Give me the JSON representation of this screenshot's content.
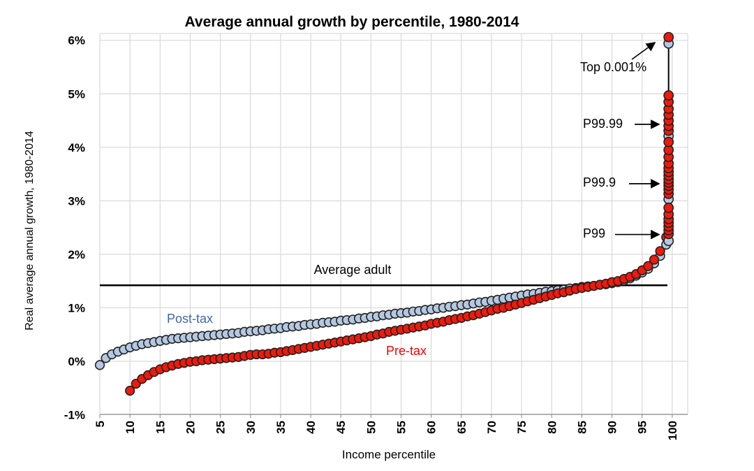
{
  "title": "Average annual growth by percentile, 1980-2014",
  "colors": {
    "posttax_fill": "#B4C8E1",
    "pretax_fill": "#EE1A0B",
    "marker_edge": "#202020",
    "posttax_label": "#3D68A8",
    "pretax_label": "#FA0000",
    "gridline": "#D9D9D9",
    "axis": "#999999",
    "reference_line": "#000000",
    "text": "#000000"
  },
  "chart_data": {
    "type": "scatter",
    "title": "Average annual growth by percentile, 1980-2014",
    "xlabel": "Income percentile",
    "ylabel": "Real average annual growth, 1980-2014",
    "xlim": [
      5,
      100
    ],
    "ylim": [
      -1,
      6
    ],
    "grid": true,
    "x_ticks": [
      5,
      10,
      15,
      20,
      25,
      30,
      35,
      40,
      45,
      50,
      55,
      60,
      65,
      70,
      75,
      80,
      85,
      90,
      95,
      100
    ],
    "y_ticks": [
      {
        "label": "6%",
        "value": 6
      },
      {
        "label": "5%",
        "value": 5
      },
      {
        "label": "4%",
        "value": 4
      },
      {
        "label": "3%",
        "value": 3
      },
      {
        "label": "2%",
        "value": 2
      },
      {
        "label": "1%",
        "value": 1
      },
      {
        "label": "0%",
        "value": 0
      },
      {
        "label": "-1%",
        "value": -1
      }
    ],
    "reference_line": {
      "label": "Average adult",
      "y": 1.42
    },
    "annotations": [
      {
        "label": "Top 0.001%",
        "points_to_y": 6.06
      },
      {
        "label": "P99.99",
        "points_to_y": 4.43
      },
      {
        "label": "P99.9",
        "points_to_y": 3.32
      },
      {
        "label": "P99",
        "points_to_y": 2.37
      }
    ],
    "series": [
      {
        "name": "Post-tax",
        "points": [
          [
            5,
            -0.07
          ],
          [
            6,
            0.06
          ],
          [
            7,
            0.13
          ],
          [
            8,
            0.18
          ],
          [
            9,
            0.22
          ],
          [
            10,
            0.26
          ],
          [
            11,
            0.29
          ],
          [
            12,
            0.32
          ],
          [
            13,
            0.34
          ],
          [
            14,
            0.36
          ],
          [
            15,
            0.38
          ],
          [
            16,
            0.4
          ],
          [
            17,
            0.42
          ],
          [
            18,
            0.43
          ],
          [
            19,
            0.44
          ],
          [
            20,
            0.45
          ],
          [
            21,
            0.46
          ],
          [
            22,
            0.47
          ],
          [
            23,
            0.48
          ],
          [
            24,
            0.49
          ],
          [
            25,
            0.5
          ],
          [
            26,
            0.51
          ],
          [
            27,
            0.52
          ],
          [
            28,
            0.53
          ],
          [
            29,
            0.55
          ],
          [
            30,
            0.56
          ],
          [
            31,
            0.57
          ],
          [
            32,
            0.58
          ],
          [
            33,
            0.6
          ],
          [
            34,
            0.61
          ],
          [
            35,
            0.62
          ],
          [
            36,
            0.64
          ],
          [
            37,
            0.65
          ],
          [
            38,
            0.66
          ],
          [
            39,
            0.68
          ],
          [
            40,
            0.69
          ],
          [
            41,
            0.7
          ],
          [
            42,
            0.72
          ],
          [
            43,
            0.73
          ],
          [
            44,
            0.74
          ],
          [
            45,
            0.76
          ],
          [
            46,
            0.77
          ],
          [
            47,
            0.78
          ],
          [
            48,
            0.8
          ],
          [
            49,
            0.81
          ],
          [
            50,
            0.83
          ],
          [
            51,
            0.84
          ],
          [
            52,
            0.86
          ],
          [
            53,
            0.87
          ],
          [
            54,
            0.89
          ],
          [
            55,
            0.9
          ],
          [
            56,
            0.91
          ],
          [
            57,
            0.93
          ],
          [
            58,
            0.94
          ],
          [
            59,
            0.96
          ],
          [
            60,
            0.97
          ],
          [
            61,
            0.99
          ],
          [
            62,
            1.0
          ],
          [
            63,
            1.02
          ],
          [
            64,
            1.03
          ],
          [
            65,
            1.05
          ],
          [
            66,
            1.06
          ],
          [
            67,
            1.08
          ],
          [
            68,
            1.1
          ],
          [
            69,
            1.11
          ],
          [
            70,
            1.13
          ],
          [
            71,
            1.15
          ],
          [
            72,
            1.17
          ],
          [
            73,
            1.19
          ],
          [
            74,
            1.21
          ],
          [
            75,
            1.23
          ],
          [
            76,
            1.25
          ],
          [
            77,
            1.26
          ],
          [
            78,
            1.28
          ],
          [
            79,
            1.3
          ],
          [
            80,
            1.31
          ],
          [
            81,
            1.33
          ],
          [
            82,
            1.34
          ],
          [
            83,
            1.36
          ],
          [
            84,
            1.37
          ],
          [
            85,
            1.39
          ],
          [
            86,
            1.4
          ],
          [
            87,
            1.41
          ],
          [
            88,
            1.43
          ],
          [
            89,
            1.44
          ],
          [
            90,
            1.46
          ],
          [
            91,
            1.48
          ],
          [
            92,
            1.51
          ],
          [
            93,
            1.55
          ],
          [
            94,
            1.6
          ],
          [
            95,
            1.66
          ],
          [
            96,
            1.73
          ],
          [
            97,
            1.83
          ],
          [
            98,
            1.97
          ],
          [
            99,
            2.18
          ]
        ]
      },
      {
        "name": "Pre-tax",
        "points": [
          [
            10,
            -0.55
          ],
          [
            11,
            -0.42
          ],
          [
            12,
            -0.33
          ],
          [
            13,
            -0.26
          ],
          [
            14,
            -0.2
          ],
          [
            15,
            -0.15
          ],
          [
            16,
            -0.11
          ],
          [
            17,
            -0.08
          ],
          [
            18,
            -0.05
          ],
          [
            19,
            -0.03
          ],
          [
            20,
            -0.01
          ],
          [
            21,
            0.0
          ],
          [
            22,
            0.02
          ],
          [
            23,
            0.03
          ],
          [
            24,
            0.04
          ],
          [
            25,
            0.05
          ],
          [
            26,
            0.06
          ],
          [
            27,
            0.07
          ],
          [
            28,
            0.08
          ],
          [
            29,
            0.1
          ],
          [
            30,
            0.12
          ],
          [
            31,
            0.13
          ],
          [
            32,
            0.13
          ],
          [
            33,
            0.14
          ],
          [
            34,
            0.16
          ],
          [
            35,
            0.17
          ],
          [
            36,
            0.19
          ],
          [
            37,
            0.21
          ],
          [
            38,
            0.23
          ],
          [
            39,
            0.25
          ],
          [
            40,
            0.27
          ],
          [
            41,
            0.29
          ],
          [
            42,
            0.31
          ],
          [
            43,
            0.33
          ],
          [
            44,
            0.35
          ],
          [
            45,
            0.37
          ],
          [
            46,
            0.39
          ],
          [
            47,
            0.41
          ],
          [
            48,
            0.43
          ],
          [
            49,
            0.45
          ],
          [
            50,
            0.47
          ],
          [
            51,
            0.5
          ],
          [
            52,
            0.52
          ],
          [
            53,
            0.55
          ],
          [
            54,
            0.57
          ],
          [
            55,
            0.59
          ],
          [
            56,
            0.61
          ],
          [
            57,
            0.63
          ],
          [
            58,
            0.65
          ],
          [
            59,
            0.67
          ],
          [
            60,
            0.7
          ],
          [
            61,
            0.72
          ],
          [
            62,
            0.74
          ],
          [
            63,
            0.77
          ],
          [
            64,
            0.79
          ],
          [
            65,
            0.81
          ],
          [
            66,
            0.84
          ],
          [
            67,
            0.86
          ],
          [
            68,
            0.89
          ],
          [
            69,
            0.92
          ],
          [
            70,
            0.95
          ],
          [
            71,
            0.98
          ],
          [
            72,
            1.0
          ],
          [
            73,
            1.03
          ],
          [
            74,
            1.06
          ],
          [
            75,
            1.09
          ],
          [
            76,
            1.12
          ],
          [
            77,
            1.15
          ],
          [
            78,
            1.18
          ],
          [
            79,
            1.21
          ],
          [
            80,
            1.24
          ],
          [
            81,
            1.27
          ],
          [
            82,
            1.29
          ],
          [
            83,
            1.32
          ],
          [
            84,
            1.35
          ],
          [
            85,
            1.37
          ],
          [
            86,
            1.39
          ],
          [
            87,
            1.41
          ],
          [
            88,
            1.43
          ],
          [
            89,
            1.45
          ],
          [
            90,
            1.48
          ],
          [
            91,
            1.5
          ],
          [
            92,
            1.54
          ],
          [
            93,
            1.58
          ],
          [
            94,
            1.63
          ],
          [
            95,
            1.7
          ],
          [
            96,
            1.78
          ],
          [
            97,
            1.9
          ],
          [
            98,
            2.06
          ],
          [
            99,
            2.32
          ]
        ]
      },
      {
        "name": "Post-tax top tail",
        "x": 99.4,
        "values": [
          2.25,
          3.03,
          4.21,
          5.94
        ]
      },
      {
        "name": "Pre-tax top tail",
        "x": 99.4,
        "values": [
          2.38,
          2.45,
          2.52,
          2.59,
          2.66,
          2.75,
          2.87,
          3.13,
          3.21,
          3.28,
          3.34,
          3.4,
          3.47,
          3.54,
          3.61,
          3.7,
          3.82,
          3.95,
          4.1,
          4.31,
          4.4,
          4.5,
          4.61,
          4.72,
          4.85,
          4.97,
          6.06
        ]
      }
    ]
  }
}
